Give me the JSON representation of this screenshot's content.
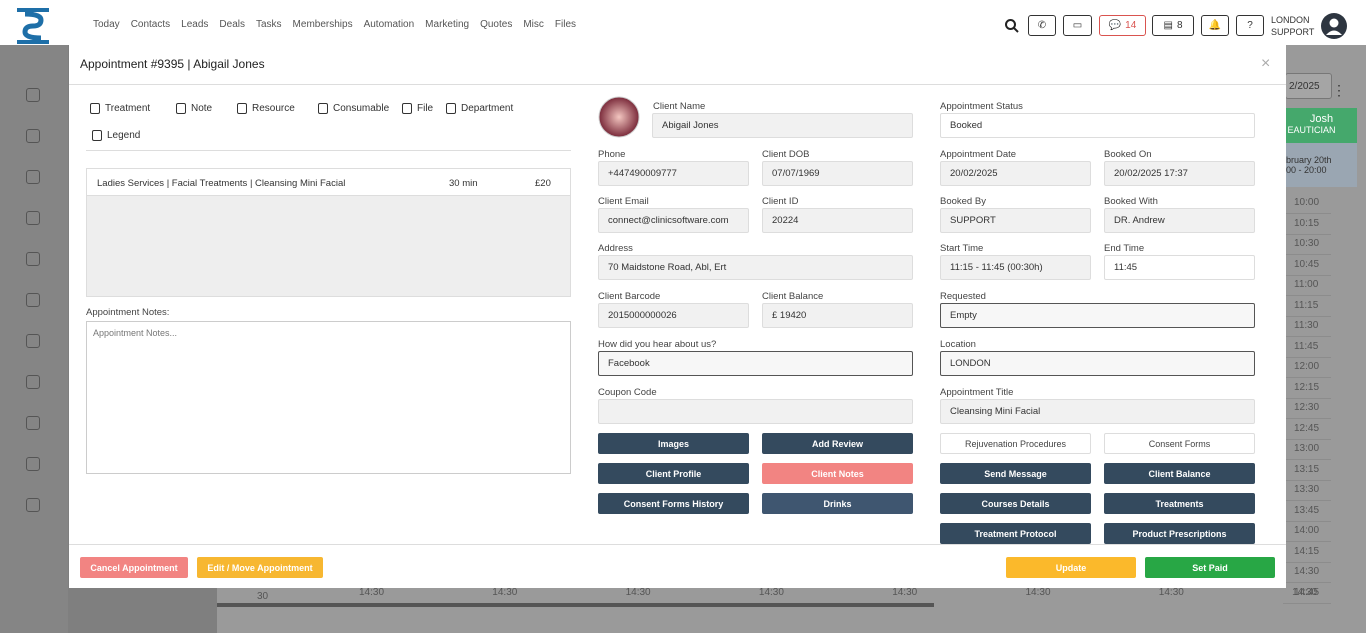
{
  "nav": {
    "items": [
      "Today",
      "Contacts",
      "Leads",
      "Deals",
      "Tasks",
      "Memberships",
      "Automation",
      "Marketing",
      "Quotes",
      "Misc",
      "Files"
    ],
    "notifications": "14",
    "store": "8",
    "user": [
      "LONDON",
      "SUPPORT"
    ]
  },
  "background": {
    "date": "2/2025",
    "staff_name": "Josh",
    "staff_role": "EAUTICIAN",
    "day": "bruary 20th",
    "hours": "00 - 20:00",
    "times": [
      "10:00",
      "10:15",
      "10:30",
      "10:45",
      "11:00",
      "11:15",
      "11:30",
      "11:45",
      "12:00",
      "12:15",
      "12:30",
      "12:45",
      "13:00",
      "13:15",
      "13:30",
      "13:45",
      "14:00",
      "14:15",
      "14:30",
      "14:45"
    ],
    "bottom_first": "30",
    "bottom_times": [
      "14:30",
      "14:30",
      "14:30",
      "14:30",
      "14:30",
      "14:30",
      "14:30",
      "14:30"
    ]
  },
  "modal": {
    "title": "Appointment #9395 | Abigail Jones",
    "close": "×",
    "tabs": [
      "Treatment",
      "Note",
      "Resource",
      "Consumable",
      "File",
      "Department",
      "Legend"
    ],
    "treatment": {
      "name": "Ladies Services | Facial Treatments | Cleansing Mini Facial",
      "duration": "30 min",
      "price": "£20"
    },
    "notes_label": "Appointment Notes:",
    "notes_placeholder": "Appointment Notes...",
    "fields": [
      {
        "label": "Client Name",
        "value": "Abigail Jones"
      },
      {
        "label": "Phone",
        "value": "+447490009777"
      },
      {
        "label": "Client DOB",
        "value": "07/07/1969"
      },
      {
        "label": "Client Email",
        "value": "connect@clinicsoftware.com"
      },
      {
        "label": "Client ID",
        "value": "20224"
      },
      {
        "label": "Address",
        "value": "70  Maidstone Road, Abl, Ert"
      },
      {
        "label": "Client Barcode",
        "value": "2015000000026"
      },
      {
        "label": "Client Balance",
        "value": "£ 19420"
      },
      {
        "label": "How did you hear about us?",
        "value": "Facebook"
      },
      {
        "label": "Coupon Code"
      },
      {
        "label": "Appointment Status",
        "value": "Booked"
      },
      {
        "label": "Appointment Date",
        "value": "20/02/2025"
      },
      {
        "label": "Booked On",
        "value": "20/02/2025 17:37"
      },
      {
        "label": "Booked By",
        "value": "SUPPORT"
      },
      {
        "label": "Booked With",
        "value": "DR. Andrew"
      },
      {
        "label": "Start Time",
        "value": "11:15 - 11:45 (00:30h)"
      },
      {
        "label": "End Time",
        "value": "11:45"
      },
      {
        "label": "Requested",
        "value": "Empty"
      },
      {
        "label": "Location",
        "value": "LONDON"
      },
      {
        "label": "Appointment Title",
        "value": "Cleansing Mini Facial"
      }
    ],
    "buttons": [
      "Images",
      "Add Review",
      "Rejuvenation Procedures",
      "Consent Forms",
      "Client Profile",
      "Client Notes",
      "Send Message",
      "Client Balance",
      "Consent Forms History",
      "Drinks",
      "Courses Details",
      "Treatments",
      "Treatment Protocol",
      "Product Prescriptions"
    ],
    "footer": {
      "cancel": "Cancel Appointment",
      "edit": "Edit / Move Appointment",
      "update": "Update",
      "paid": "Set Paid"
    }
  }
}
